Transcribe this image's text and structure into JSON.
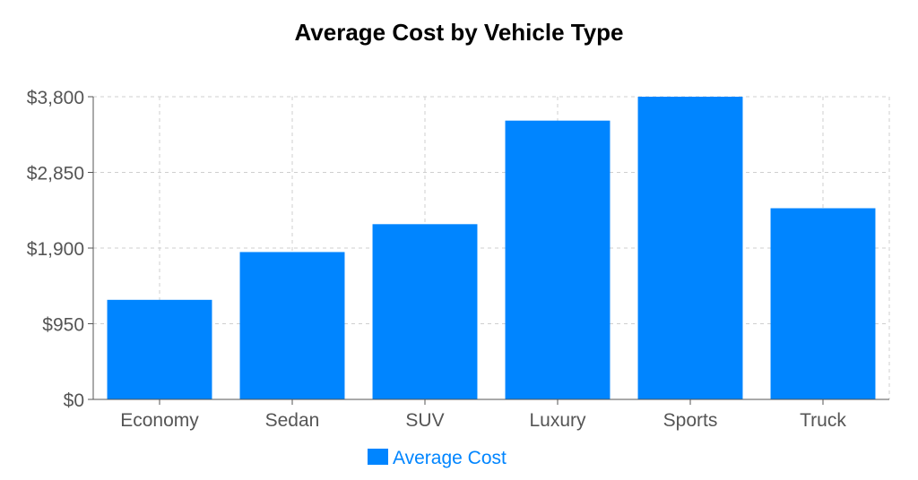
{
  "chart_data": {
    "type": "bar",
    "title": "Average Cost by Vehicle Type",
    "xlabel": "",
    "ylabel": "",
    "categories": [
      "Economy",
      "Sedan",
      "SUV",
      "Luxury",
      "Sports",
      "Truck"
    ],
    "series": [
      {
        "name": "Average Cost",
        "values": [
          1250,
          1850,
          2200,
          3500,
          3800,
          2400
        ]
      }
    ],
    "ylim": [
      0,
      3800
    ],
    "y_ticks": [
      0,
      950,
      1900,
      2850,
      3800
    ],
    "y_tick_labels": [
      "$0",
      "$950",
      "$1,900",
      "$2,850",
      "$3,800"
    ],
    "grid": true,
    "legend_position": "bottom-center",
    "colors": {
      "bar": "#0085ff",
      "legend_text": "#0085ff"
    }
  }
}
